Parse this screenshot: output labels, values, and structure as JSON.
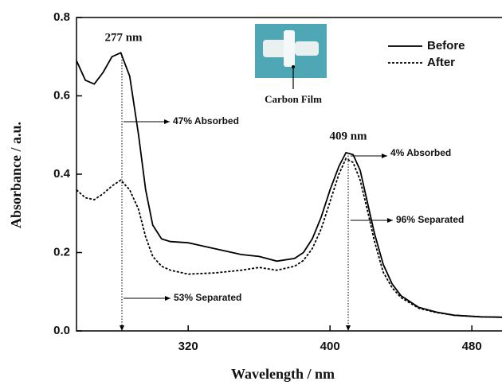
{
  "chart_data": {
    "type": "line",
    "xlabel": "Wavelength / nm",
    "ylabel": "Absorbance / a.u.",
    "x": [
      257,
      262,
      267,
      272,
      277,
      282,
      287,
      292,
      296,
      300,
      305,
      310,
      320,
      335,
      350,
      360,
      370,
      380,
      385,
      390,
      395,
      400,
      405,
      409,
      413,
      417,
      421,
      425,
      430,
      435,
      440,
      450,
      460,
      470,
      485,
      497
    ],
    "series": [
      {
        "name": "Before",
        "color": "#000000",
        "dash": "solid",
        "values": [
          0.69,
          0.64,
          0.63,
          0.66,
          0.7,
          0.71,
          0.65,
          0.5,
          0.36,
          0.27,
          0.235,
          0.228,
          0.225,
          0.21,
          0.195,
          0.19,
          0.178,
          0.185,
          0.2,
          0.235,
          0.29,
          0.36,
          0.42,
          0.455,
          0.45,
          0.41,
          0.33,
          0.25,
          0.17,
          0.12,
          0.09,
          0.06,
          0.048,
          0.04,
          0.036,
          0.035
        ]
      },
      {
        "name": "After",
        "color": "#000000",
        "dash": "dotted",
        "values": [
          0.36,
          0.34,
          0.335,
          0.35,
          0.37,
          0.385,
          0.36,
          0.31,
          0.24,
          0.19,
          0.165,
          0.155,
          0.145,
          0.148,
          0.155,
          0.162,
          0.155,
          0.165,
          0.18,
          0.21,
          0.26,
          0.33,
          0.4,
          0.44,
          0.43,
          0.385,
          0.31,
          0.23,
          0.15,
          0.11,
          0.085,
          0.058,
          0.047,
          0.04,
          0.036,
          0.035
        ]
      }
    ],
    "xlim": [
      257,
      497
    ],
    "ylim": [
      0,
      0.8
    ],
    "xticks": [
      320,
      400,
      480
    ],
    "yticks": [
      {
        "value": 0,
        "label": "0.0"
      },
      0.2,
      0.4,
      0.6,
      0.8
    ],
    "legend": "upper right",
    "annotations": [
      "277 nm",
      "409 nm",
      "47% Absorbed",
      "4% Absorbed",
      "96% Separated",
      "53% Separated",
      "Carbon Film"
    ]
  }
}
